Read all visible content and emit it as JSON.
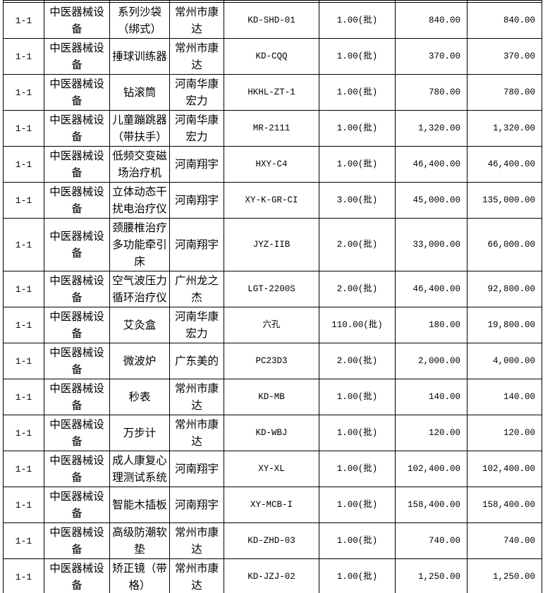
{
  "table": {
    "column_keys": [
      "item_no",
      "category",
      "name",
      "manufacturer",
      "model",
      "quantity",
      "unit_price",
      "total_price"
    ],
    "rows": [
      [
        "1-1",
        "中医器械设备",
        "系列沙袋（绑式）",
        "常州市康达",
        "KD-SHD-01",
        "1.00(批)",
        "840.00",
        "840.00"
      ],
      [
        "1-1",
        "中医器械设备",
        "捶球训练器",
        "常州市康达",
        "KD-CQQ",
        "1.00(批)",
        "370.00",
        "370.00"
      ],
      [
        "1-1",
        "中医器械设备",
        "钻滚筒",
        "河南华康宏力",
        "HKHL-ZT-1",
        "1.00(批)",
        "780.00",
        "780.00"
      ],
      [
        "1-1",
        "中医器械设备",
        "儿童蹦跳器（带扶手）",
        "河南华康宏力",
        "MR-2111",
        "1.00(批)",
        "1,320.00",
        "1,320.00"
      ],
      [
        "1-1",
        "中医器械设备",
        "低频交变磁场治疗机",
        "河南翔宇",
        "HXY-C4",
        "1.00(批)",
        "46,400.00",
        "46,400.00"
      ],
      [
        "1-1",
        "中医器械设备",
        "立体动态干扰电治疗仪",
        "河南翔宇",
        "XY-K-GR-CI",
        "3.00(批)",
        "45,000.00",
        "135,000.00"
      ],
      [
        "1-1",
        "中医器械设备",
        "颈腰椎治疗多功能牵引床",
        "河南翔宇",
        "JYZ-IIB",
        "2.00(批)",
        "33,000.00",
        "66,000.00"
      ],
      [
        "1-1",
        "中医器械设备",
        "空气波压力循环治疗仪",
        "广州龙之杰",
        "LGT-2200S",
        "2.00(批)",
        "46,400.00",
        "92,800.00"
      ],
      [
        "1-1",
        "中医器械设备",
        "艾灸盒",
        "河南华康宏力",
        "六孔",
        "110.00(批)",
        "180.00",
        "19,800.00"
      ],
      [
        "1-1",
        "中医器械设备",
        "微波炉",
        "广东美的",
        "PC23D3",
        "2.00(批)",
        "2,000.00",
        "4,000.00"
      ],
      [
        "1-1",
        "中医器械设备",
        "秒表",
        "常州市康达",
        "KD-MB",
        "1.00(批)",
        "140.00",
        "140.00"
      ],
      [
        "1-1",
        "中医器械设备",
        "万步计",
        "常州市康达",
        "KD-WBJ",
        "1.00(批)",
        "120.00",
        "120.00"
      ],
      [
        "1-1",
        "中医器械设备",
        "成人康复心理测试系统",
        "河南翔宇",
        "XY-XL",
        "1.00(批)",
        "102,400.00",
        "102,400.00"
      ],
      [
        "1-1",
        "中医器械设备",
        "智能木插板",
        "河南翔宇",
        "XY-MCB-I",
        "1.00(批)",
        "158,400.00",
        "158,400.00"
      ],
      [
        "1-1",
        "中医器械设备",
        "高级防潮软垫",
        "常州市康达",
        "KD-ZHD-03",
        "1.00(批)",
        "740.00",
        "740.00"
      ],
      [
        "1-1",
        "中医器械设备",
        "矫正镜（带格）",
        "常州市康达",
        "KD-JZJ-02",
        "1.00(批)",
        "1,250.00",
        "1,250.00"
      ]
    ],
    "colors": {
      "border": "#000000",
      "text": "#000000",
      "background": "#ffffff"
    }
  }
}
